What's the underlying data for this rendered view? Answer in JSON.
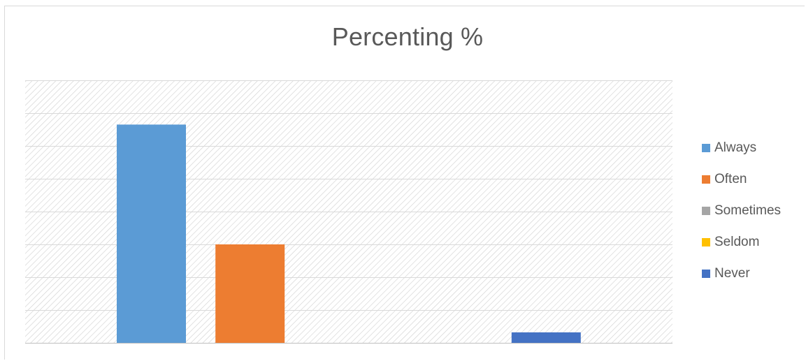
{
  "chart_data": {
    "type": "bar",
    "title": "Percenting %",
    "categories": [
      "Always",
      "Often",
      "Sometimes",
      "Seldom",
      "Never"
    ],
    "values": [
      66.5,
      30,
      0,
      0,
      3.2
    ],
    "colors": [
      "#5b9bd5",
      "#ed7d31",
      "#a5a5a5",
      "#ffc000",
      "#4472c4"
    ],
    "ylim": [
      0,
      80
    ],
    "gridlines": 8,
    "grid": true,
    "legend_position": "right",
    "axis_labels_shown": false
  },
  "legend": {
    "items": [
      {
        "label": "Always",
        "color": "#5b9bd5"
      },
      {
        "label": "Often",
        "color": "#ed7d31"
      },
      {
        "label": "Sometimes",
        "color": "#a5a5a5"
      },
      {
        "label": "Seldom",
        "color": "#ffc000"
      },
      {
        "label": "Never",
        "color": "#4472c4"
      }
    ]
  }
}
